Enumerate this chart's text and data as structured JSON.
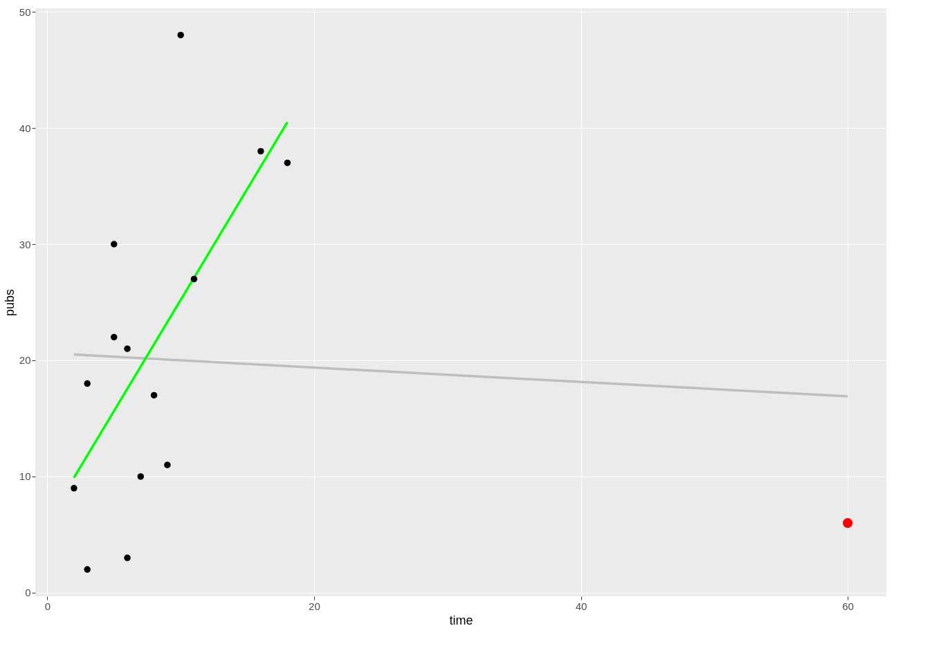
{
  "chart_data": {
    "type": "scatter",
    "xlabel": "time",
    "ylabel": "pubs",
    "series": [
      {
        "type": "line",
        "marker": "none",
        "color": "#bebebe",
        "x": [
          2,
          60
        ],
        "values": [
          20.5,
          16.9
        ]
      },
      {
        "type": "line",
        "marker": "none",
        "color": "#00ff00",
        "x": [
          2,
          18
        ],
        "values": [
          9.9,
          40.5
        ]
      },
      {
        "color": "#000000",
        "x": [
          2,
          3,
          3,
          5,
          5,
          6,
          6,
          7,
          8,
          9,
          10,
          11,
          16,
          18
        ],
        "values": [
          9,
          2,
          18,
          30,
          22,
          21,
          3,
          10,
          17,
          11,
          48,
          27,
          38,
          37
        ]
      },
      {
        "color": "#ff0000",
        "x": [
          60
        ],
        "values": [
          6
        ]
      }
    ],
    "xlim": [
      -0.9,
      62.9
    ],
    "ylim": [
      -0.3,
      50.3
    ],
    "xticks": [
      0,
      20,
      40,
      60
    ],
    "yticks": [
      0,
      10,
      20,
      30,
      40,
      50
    ],
    "grid": true,
    "marker": "circle"
  }
}
